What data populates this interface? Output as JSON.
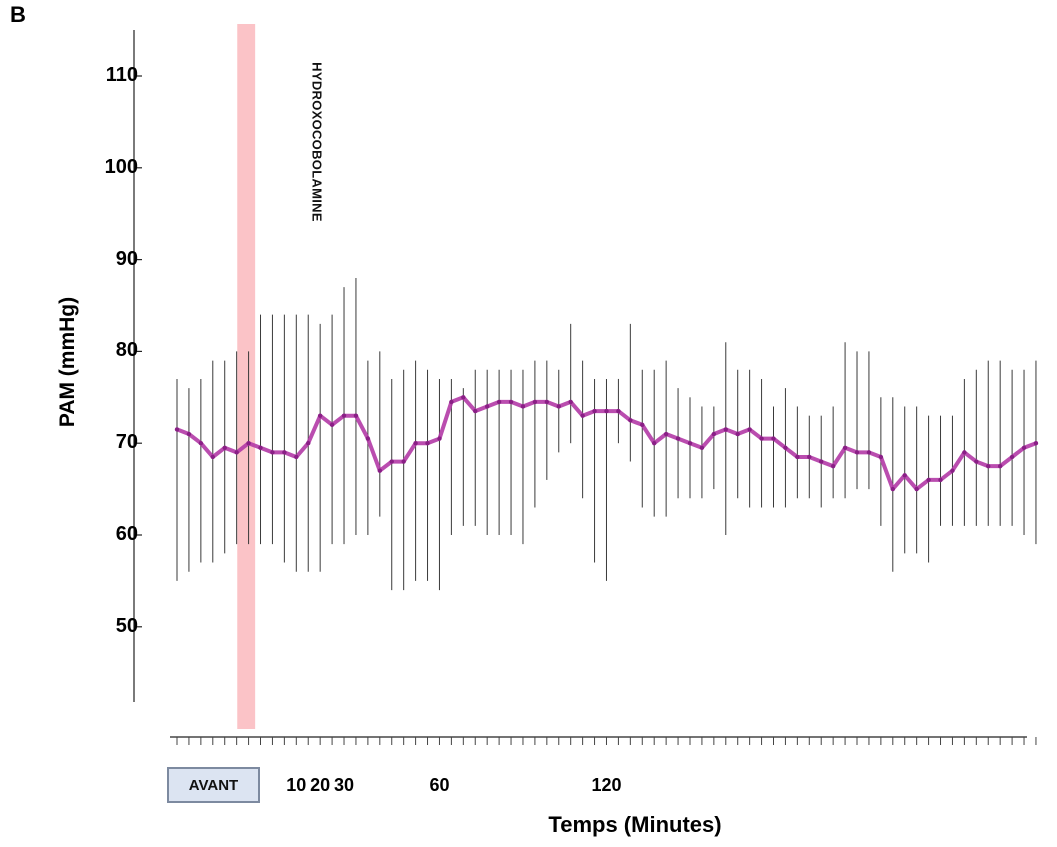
{
  "panel_letter": "B",
  "chart_data": {
    "type": "line",
    "title": "",
    "xlabel": "Temps (Minutes)",
    "ylabel": "PAM (mmHg)",
    "ylim": [
      40,
      115
    ],
    "yticks": [
      50,
      60,
      70,
      80,
      90,
      100,
      110
    ],
    "x_tick_labels": [
      {
        "index": 10,
        "label": "10"
      },
      {
        "index": 12,
        "label": "20"
      },
      {
        "index": 14,
        "label": "30"
      },
      {
        "index": 22,
        "label": "60"
      },
      {
        "index": 36,
        "label": "120"
      }
    ],
    "baseline_label": "AVANT",
    "intervention": {
      "label": "HYDROXOCOBOLAMINE",
      "start_index": 5.05,
      "end_index": 6.55
    },
    "line_color": "#b23aa6",
    "band_color": "#fbc3c7",
    "grid": false,
    "legend": "none",
    "series": [
      {
        "mean": [
          71.5,
          71,
          70,
          68.5,
          69.5,
          69,
          70,
          69.5,
          69,
          69,
          68.5,
          70,
          73,
          72,
          73,
          73,
          70.5,
          67,
          68,
          68,
          70,
          70,
          70.5,
          74.5,
          75,
          73.5,
          74,
          74.5,
          74.5,
          74,
          74.5,
          74.5,
          74,
          74.5,
          73,
          73.5,
          73.5,
          73.5,
          72.5,
          72,
          70,
          71,
          70.5,
          70,
          69.5,
          71,
          71.5,
          71,
          71.5,
          70.5,
          70.5,
          69.5,
          68.5,
          68.5,
          68,
          67.5,
          69.5,
          69,
          69,
          68.5,
          65,
          66.5,
          65,
          66,
          66,
          67,
          69,
          68,
          67.5,
          67.5,
          68.5,
          69.5,
          70
        ],
        "upper": [
          77,
          76,
          77,
          79,
          79,
          80,
          80,
          84,
          84,
          84,
          84,
          84,
          83,
          84,
          87,
          88,
          79,
          80,
          77,
          78,
          79,
          78,
          77,
          77,
          76,
          78,
          78,
          78,
          78,
          78,
          79,
          79,
          78,
          83,
          79,
          77,
          77,
          77,
          83,
          78,
          78,
          79,
          76,
          75,
          74,
          74,
          81,
          78,
          78,
          77,
          74,
          76,
          74,
          73,
          73,
          74,
          81,
          80,
          80,
          75,
          75,
          74,
          74,
          73,
          73,
          73,
          77,
          78,
          79,
          79,
          78,
          78,
          79
        ],
        "lower": [
          55,
          56,
          57,
          57,
          58,
          59,
          59,
          59,
          59,
          57,
          56,
          56,
          56,
          59,
          59,
          60,
          60,
          62,
          54,
          54,
          55,
          55,
          54,
          60,
          61,
          61,
          60,
          60,
          60,
          59,
          63,
          66,
          69,
          70,
          64,
          57,
          55,
          70,
          68,
          63,
          62,
          62,
          64,
          64,
          64,
          65,
          60,
          64,
          63,
          63,
          63,
          63,
          64,
          64,
          63,
          64,
          64,
          65,
          65,
          61,
          56,
          58,
          58,
          57,
          61,
          61,
          61,
          61,
          61,
          61,
          61,
          60,
          59
        ]
      }
    ]
  }
}
